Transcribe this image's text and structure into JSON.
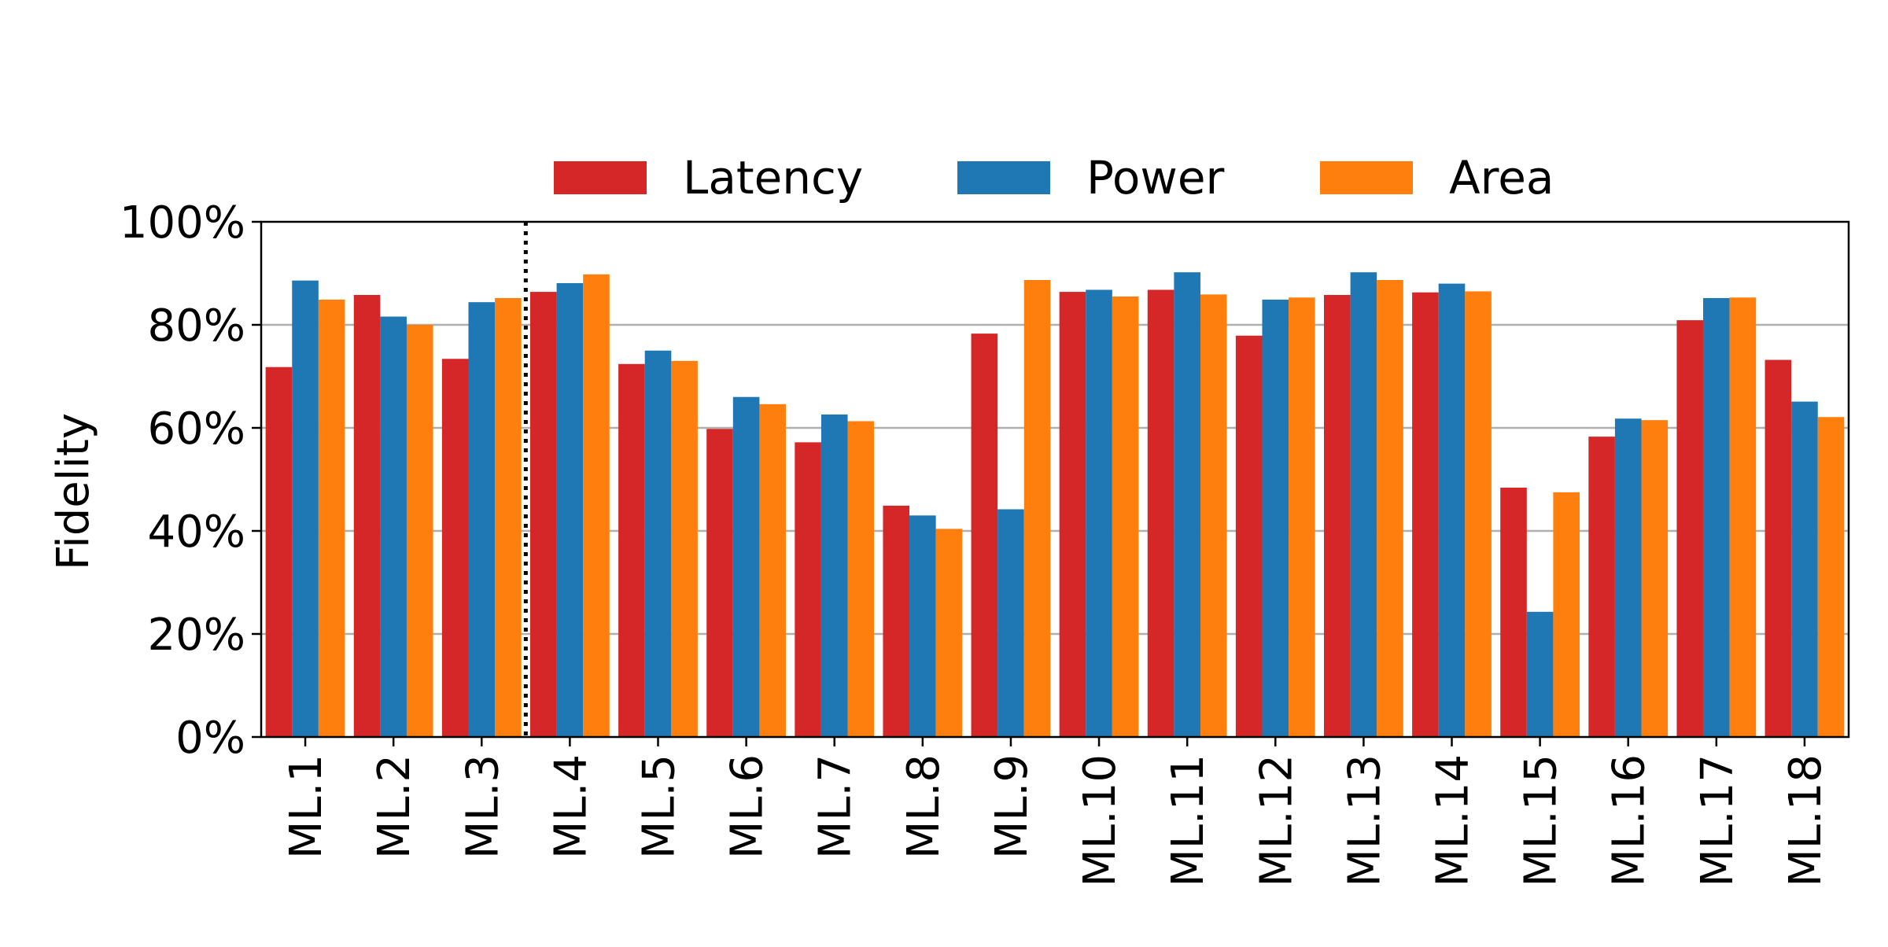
{
  "chart_data": {
    "type": "bar",
    "categories": [
      "ML.1",
      "ML.2",
      "ML.3",
      "ML.4",
      "ML.5",
      "ML.6",
      "ML.7",
      "ML.8",
      "ML.9",
      "ML.10",
      "ML.11",
      "ML.12",
      "ML.13",
      "ML.14",
      "ML.15",
      "ML.16",
      "ML.17",
      "ML.18"
    ],
    "series": [
      {
        "name": "Latency",
        "color": "#d62728",
        "values": [
          71.8,
          85.8,
          73.4,
          86.4,
          72.4,
          59.8,
          57.2,
          44.9,
          78.3,
          86.4,
          86.8,
          77.9,
          85.8,
          86.3,
          48.4,
          58.3,
          80.9,
          73.2
        ]
      },
      {
        "name": "Power",
        "color": "#1f77b4",
        "values": [
          88.6,
          81.6,
          84.4,
          88.1,
          75.0,
          66.0,
          62.6,
          43.0,
          44.2,
          86.8,
          90.2,
          84.9,
          90.2,
          88.0,
          24.3,
          61.8,
          85.2,
          65.1
        ]
      },
      {
        "name": "Area",
        "color": "#ff7f0e",
        "values": [
          84.9,
          80.0,
          85.2,
          89.8,
          73.0,
          64.6,
          61.3,
          40.4,
          88.7,
          85.5,
          85.9,
          85.3,
          88.7,
          86.5,
          47.5,
          61.5,
          85.3,
          62.1
        ]
      }
    ],
    "ylabel": "Fidelity",
    "ylim": [
      0,
      100
    ],
    "yticks": [
      "0%",
      "20%",
      "40%",
      "60%",
      "80%",
      "100%"
    ],
    "grid": "horizontal",
    "legend_position": "top-center",
    "separator_after_category": "ML.3"
  }
}
